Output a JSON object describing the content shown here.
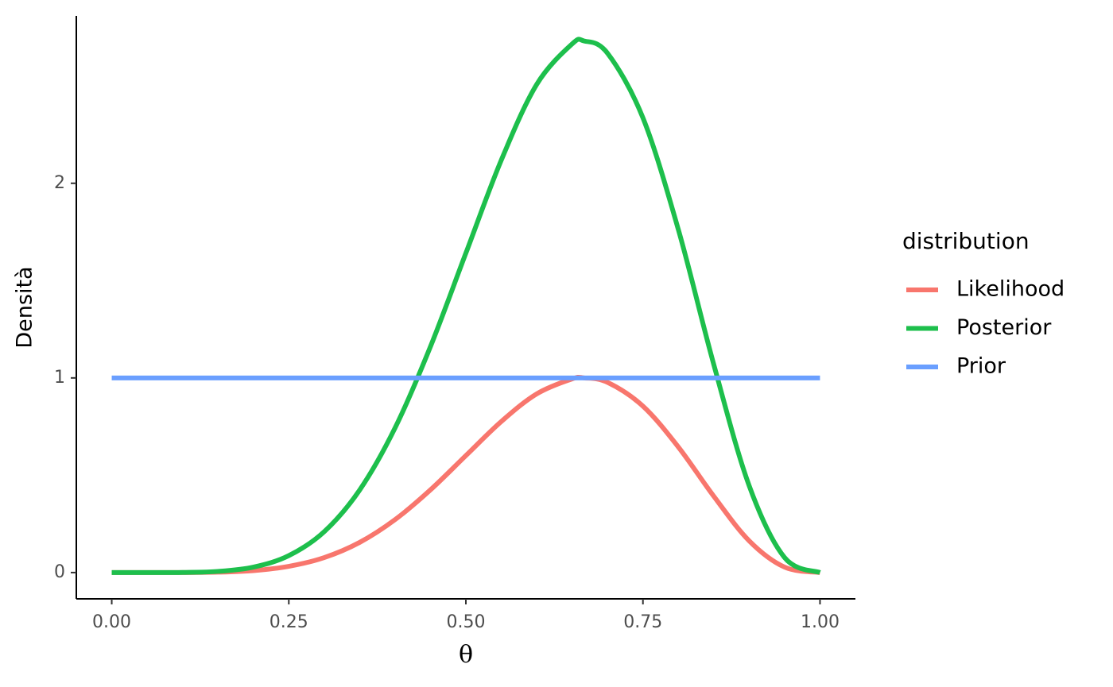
{
  "chart_data": {
    "type": "line",
    "x_label": "θ",
    "y_label": "Densità",
    "legend_title": "distribution",
    "legend": "right",
    "x": [
      0,
      0.05,
      0.1,
      0.15,
      0.2,
      0.25,
      0.3,
      0.35,
      0.4,
      0.45,
      0.5,
      0.55,
      0.6,
      0.65,
      0.667,
      0.7,
      0.75,
      0.8,
      0.85,
      0.9,
      0.95,
      1
    ],
    "series": [
      {
        "name": "Likelihood",
        "color": "#F8766D",
        "values": [
          0,
          0,
          0.0002,
          0.002,
          0.01,
          0.032,
          0.077,
          0.155,
          0.272,
          0.425,
          0.601,
          0.776,
          0.918,
          0.995,
          1,
          0.977,
          0.855,
          0.645,
          0.392,
          0.163,
          0.028,
          0
        ]
      },
      {
        "name": "Posterior",
        "color": "#1DBF4C",
        "values": [
          0,
          0,
          0.0006,
          0.006,
          0.028,
          0.087,
          0.21,
          0.424,
          0.743,
          1.161,
          1.641,
          2.119,
          2.508,
          2.716,
          2.731,
          2.668,
          2.336,
          1.762,
          1.069,
          0.446,
          0.077,
          0
        ]
      },
      {
        "name": "Prior",
        "color": "#6A9FFF",
        "values": [
          1,
          1,
          1,
          1,
          1,
          1,
          1,
          1,
          1,
          1,
          1,
          1,
          1,
          1,
          1,
          1,
          1,
          1,
          1,
          1,
          1,
          1
        ]
      }
    ],
    "xlim": [
      -0.05,
      1.05
    ],
    "xticks": [
      {
        "value": 0,
        "label": "0.00"
      },
      {
        "value": 0.25,
        "label": "0.25"
      },
      {
        "value": 0.5,
        "label": "0.50"
      },
      {
        "value": 0.75,
        "label": "0.75"
      },
      {
        "value": 1,
        "label": "1.00"
      }
    ],
    "ylim": [
      -0.135,
      2.86
    ],
    "yticks": [
      0,
      1,
      2
    ],
    "grid": false
  }
}
